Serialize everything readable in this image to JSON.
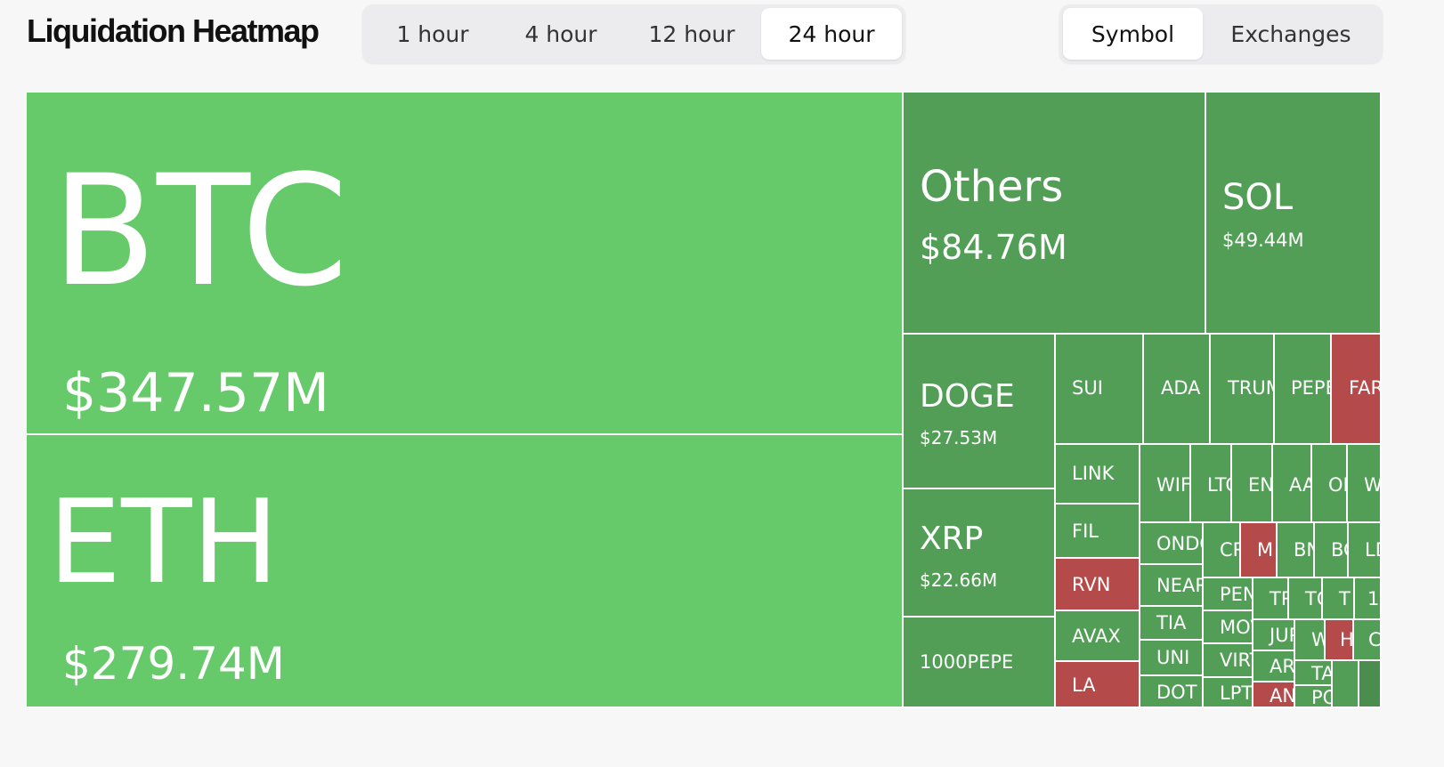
{
  "header": {
    "title": "Liquidation Heatmap",
    "time_tabs": [
      "1 hour",
      "4 hour",
      "12 hour",
      "24 hour"
    ],
    "active_time": "24 hour",
    "group_tabs": [
      "Symbol",
      "Exchanges"
    ],
    "active_group": "Symbol"
  },
  "colors": {
    "primary_green": "#66c96a",
    "secondary_green": "#529e56",
    "dark_green": "#4a8d4f",
    "red": "#b44a4a"
  },
  "tiles": {
    "btc": {
      "symbol": "BTC",
      "value": "$347.57M"
    },
    "eth": {
      "symbol": "ETH",
      "value": "$279.74M"
    },
    "others": {
      "symbol": "Others",
      "value": "$84.76M"
    },
    "sol": {
      "symbol": "SOL",
      "value": "$49.44M"
    },
    "doge": {
      "symbol": "DOGE",
      "value": "$27.53M"
    },
    "xrp": {
      "symbol": "XRP",
      "value": "$22.66M"
    },
    "pepe1000": {
      "symbol": "1000PEPE"
    },
    "sui": {
      "symbol": "SUI"
    },
    "ada": {
      "symbol": "ADA"
    },
    "trump": {
      "symbol": "TRUMP"
    },
    "pepe": {
      "symbol": "PEPE"
    },
    "fartcoin": {
      "symbol": "FARTCOIN"
    },
    "link": {
      "symbol": "LINK"
    },
    "fil": {
      "symbol": "FIL"
    },
    "rvn": {
      "symbol": "RVN"
    },
    "avax": {
      "symbol": "AVAX"
    },
    "la": {
      "symbol": "LA"
    },
    "wif": {
      "symbol": "WIF"
    },
    "ltc": {
      "symbol": "LTC"
    },
    "ena": {
      "symbol": "ENA"
    },
    "aave": {
      "symbol": "AAVE"
    },
    "op": {
      "symbol": "OP"
    },
    "w": {
      "symbol": "W"
    },
    "ondo": {
      "symbol": "ONDO"
    },
    "crv": {
      "symbol": "CRV"
    },
    "m": {
      "symbol": "M"
    },
    "bnb": {
      "symbol": "BNB"
    },
    "bch": {
      "symbol": "BCH"
    },
    "ld": {
      "symbol": "LD"
    },
    "near": {
      "symbol": "NEAR"
    },
    "pengu": {
      "symbol": "PENGU"
    },
    "trb": {
      "symbol": "TRB"
    },
    "ton": {
      "symbol": "TON"
    },
    "tao": {
      "symbol": "T"
    },
    "one": {
      "symbol": "1"
    },
    "tia": {
      "symbol": "TIA"
    },
    "move": {
      "symbol": "MOVE"
    },
    "jup": {
      "symbol": "JUP"
    },
    "wld": {
      "symbol": "W"
    },
    "h": {
      "symbol": "H"
    },
    "c": {
      "symbol": "C"
    },
    "uni": {
      "symbol": "UNI"
    },
    "virtual": {
      "symbol": "VIRTUAL"
    },
    "arb": {
      "symbol": "AR"
    },
    "tai": {
      "symbol": "TA"
    },
    "dot": {
      "symbol": "DOT"
    },
    "lpt": {
      "symbol": "LPT"
    },
    "an": {
      "symbol": "AN"
    },
    "pol": {
      "symbol": "PO"
    }
  }
}
